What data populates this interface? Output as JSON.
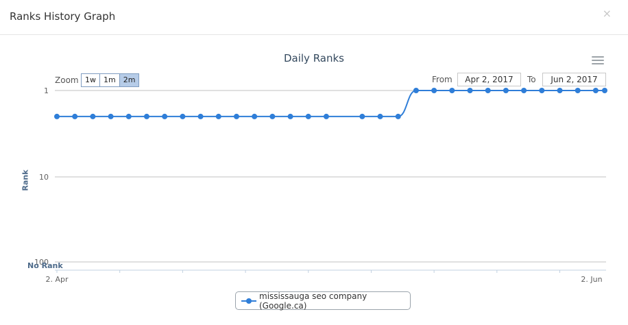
{
  "modal": {
    "title": "Ranks History Graph",
    "close_label": "×"
  },
  "chart": {
    "title": "Daily Ranks",
    "menu_icon": "hamburger-menu-icon"
  },
  "zoom": {
    "label": "Zoom",
    "buttons": [
      "1w",
      "1m",
      "2m"
    ],
    "active": "2m"
  },
  "range": {
    "from_label": "From",
    "from_value": "Apr 2, 2017",
    "to_label": "To",
    "to_value": "Jun 2, 2017"
  },
  "legend": {
    "label": "mississauga seo company (Google.ca)"
  },
  "colors": {
    "series": "#2f7ed8",
    "grid": "#c0c0c0",
    "accent": "#b6cce8"
  },
  "chart_data": {
    "type": "line",
    "title": "Daily Ranks",
    "ylabel": "Rank",
    "y_scale": "log",
    "y_reversed": true,
    "y_ticks": [
      "1",
      "10",
      "100"
    ],
    "y_extra_label": "No Rank",
    "x_ticks": [
      "2. Apr",
      "2. Jun"
    ],
    "x_range": [
      "2017-04-02",
      "2017-06-02"
    ],
    "legend_position": "bottom-center",
    "series": [
      {
        "name": "mississauga seo company (Google.ca)",
        "points": [
          [
            "2017-04-02",
            2
          ],
          [
            "2017-04-04",
            2
          ],
          [
            "2017-04-06",
            2
          ],
          [
            "2017-04-08",
            2
          ],
          [
            "2017-04-10",
            2
          ],
          [
            "2017-04-12",
            2
          ],
          [
            "2017-04-14",
            2
          ],
          [
            "2017-04-16",
            2
          ],
          [
            "2017-04-18",
            2
          ],
          [
            "2017-04-20",
            2
          ],
          [
            "2017-04-22",
            2
          ],
          [
            "2017-04-24",
            2
          ],
          [
            "2017-04-26",
            2
          ],
          [
            "2017-04-28",
            2
          ],
          [
            "2017-04-30",
            2
          ],
          [
            "2017-05-02",
            2
          ],
          [
            "2017-05-06",
            2
          ],
          [
            "2017-05-08",
            2
          ],
          [
            "2017-05-10",
            2
          ],
          [
            "2017-05-12",
            1
          ],
          [
            "2017-05-14",
            1
          ],
          [
            "2017-05-16",
            1
          ],
          [
            "2017-05-18",
            1
          ],
          [
            "2017-05-20",
            1
          ],
          [
            "2017-05-22",
            1
          ],
          [
            "2017-05-24",
            1
          ],
          [
            "2017-05-26",
            1
          ],
          [
            "2017-05-28",
            1
          ],
          [
            "2017-05-30",
            1
          ],
          [
            "2017-06-01",
            1
          ],
          [
            "2017-06-02",
            1
          ]
        ]
      }
    ]
  }
}
